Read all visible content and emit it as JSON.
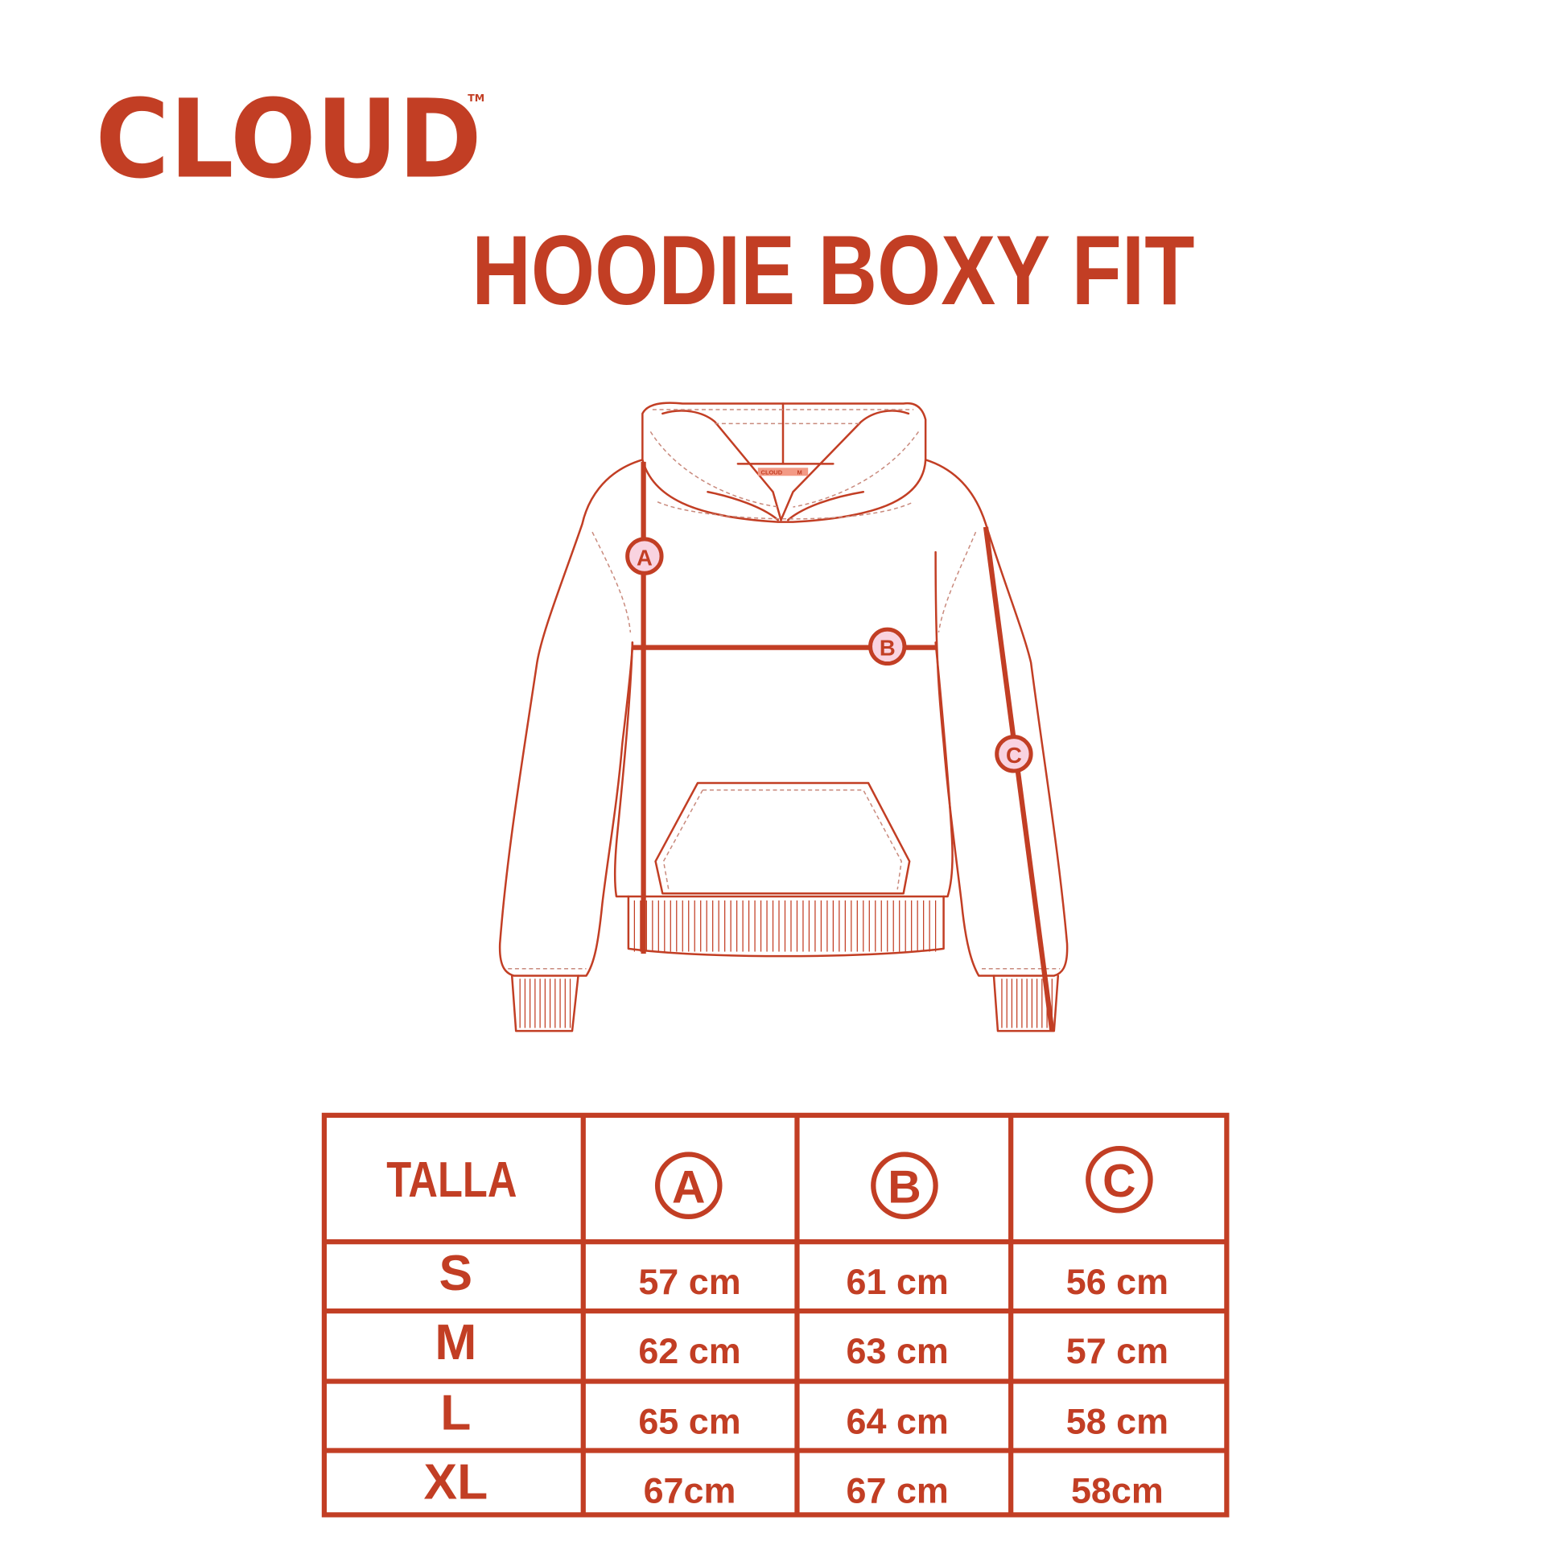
{
  "brand": {
    "name": "CLOUD",
    "trademark": "TM"
  },
  "title": "HOODIE BOXY FIT",
  "garment_label": {
    "brand": "CLOUD",
    "size": "M"
  },
  "markers": {
    "a": "A",
    "b": "B",
    "c": "C"
  },
  "colors": {
    "accent": "#c23e24",
    "marker_fill": "#f9d3e0",
    "label_fill": "#f39a85"
  },
  "table": {
    "headers": [
      "TALLA",
      "A",
      "B",
      "C"
    ],
    "rows": [
      {
        "size": "S",
        "a": "57 cm",
        "b": "61 cm",
        "c": "56 cm"
      },
      {
        "size": "M",
        "a": "62 cm",
        "b": "63 cm",
        "c": "57 cm"
      },
      {
        "size": "L",
        "a": "65 cm",
        "b": "64 cm",
        "c": "58 cm"
      },
      {
        "size": "XL",
        "a": "67cm",
        "b": "67 cm",
        "c": "58cm"
      }
    ]
  }
}
